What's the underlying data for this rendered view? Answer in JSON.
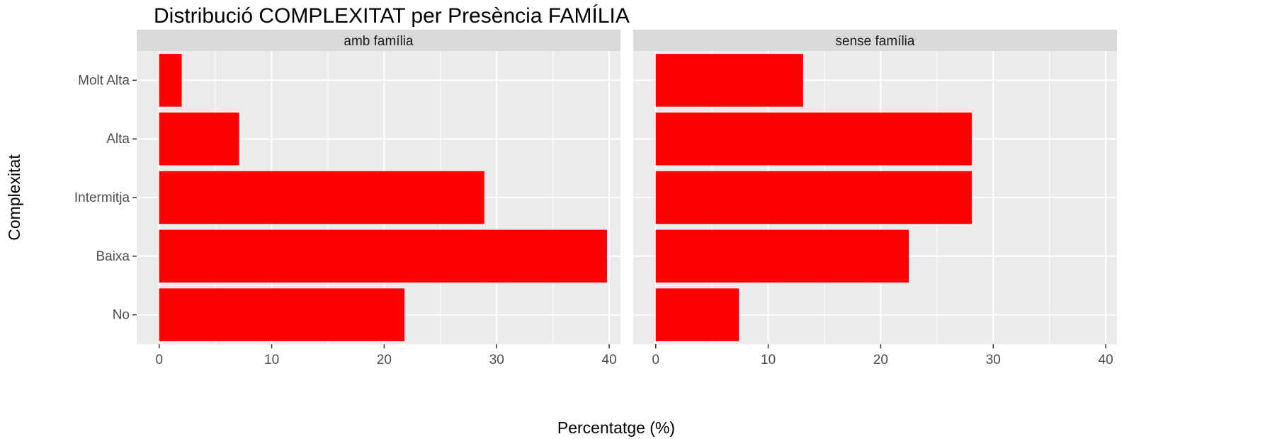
{
  "chart_data": {
    "type": "bar",
    "orientation": "horizontal",
    "title": "Distribució COMPLEXITAT per Presència FAMÍLIA",
    "xlabel": "Percentatge (%)",
    "ylabel": "Complexitat",
    "categories": [
      "No",
      "Baixa",
      "Intermitja",
      "Alta",
      "Molt Alta"
    ],
    "xlim": [
      -2,
      41
    ],
    "xticks": [
      0,
      10,
      20,
      30,
      40
    ],
    "grid": true,
    "panel_background": "#ebebeb",
    "strip_background": "#d9d9d9",
    "bar_color": "#ff0000",
    "panels": [
      {
        "name": "amb família",
        "values": [
          21.8,
          39.8,
          28.9,
          7.1,
          2.0
        ]
      },
      {
        "name": "sense família",
        "values": [
          7.4,
          22.5,
          28.1,
          28.1,
          13.1
        ]
      }
    ]
  }
}
